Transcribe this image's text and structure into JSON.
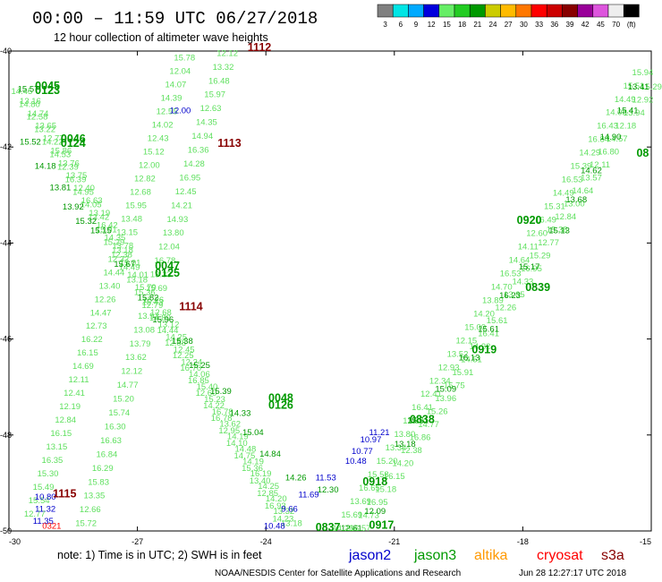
{
  "header": {
    "title": "00:00 – 11:59 UTC 06/27/2018",
    "subtitle": "12 hour collection of altimeter wave heights"
  },
  "color_scale": {
    "colors": [
      "#808080",
      "#00e5e5",
      "#00aaff",
      "#0000dd",
      "#66ee66",
      "#22cc22",
      "#009900",
      "#cccc00",
      "#ffbb00",
      "#ff7700",
      "#ff0000",
      "#cc0000",
      "#880000",
      "#990099",
      "#dd55dd",
      "#eeeeee",
      "#000000"
    ],
    "labels": [
      "3",
      "6",
      "9",
      "12",
      "15",
      "18",
      "21",
      "24",
      "27",
      "30",
      "33",
      "36",
      "39",
      "42",
      "45",
      "70",
      "(ft)"
    ]
  },
  "chart_data": {
    "type": "scatter",
    "title": "12 hour collection of altimeter wave heights",
    "xlim": [
      -30,
      -15
    ],
    "ylim": [
      -50,
      -40
    ],
    "x_ticks": [
      "-30",
      "-27",
      "-24",
      "-21",
      "-18",
      "-15"
    ],
    "y_ticks": [
      "-40",
      "-42",
      "-44",
      "-46",
      "-48",
      "-50"
    ],
    "series": [
      {
        "name": "jason3",
        "color": "#009900",
        "points": [
          {
            "x": -29.55,
            "y": -40.85,
            "v": "15.57"
          },
          {
            "x": -29.5,
            "y": -41.95,
            "v": "15.52"
          },
          {
            "x": -29.15,
            "y": -42.45,
            "v": "14.18"
          },
          {
            "x": -28.8,
            "y": -42.9,
            "v": "13.81"
          },
          {
            "x": -28.5,
            "y": -43.3,
            "v": "13.92"
          },
          {
            "x": -28.2,
            "y": -43.6,
            "v": "15.32"
          },
          {
            "x": -27.85,
            "y": -43.8,
            "v": "15.15"
          },
          {
            "x": -27.3,
            "y": -44.5,
            "v": "15.67"
          },
          {
            "x": -26.75,
            "y": -45.2,
            "v": "15.82"
          },
          {
            "x": -26.4,
            "y": -45.65,
            "v": "15.96"
          },
          {
            "x": -25.95,
            "y": -46.1,
            "v": "15.38"
          },
          {
            "x": -25.55,
            "y": -46.6,
            "v": "15.25"
          },
          {
            "x": -25.05,
            "y": -47.15,
            "v": "15.39"
          },
          {
            "x": -24.6,
            "y": -47.6,
            "v": "14.33"
          },
          {
            "x": -24.3,
            "y": -48.0,
            "v": "15.04"
          },
          {
            "x": -23.9,
            "y": -48.45,
            "v": "14.84"
          },
          {
            "x": -23.3,
            "y": -48.95,
            "v": "14.26"
          },
          {
            "x": -22.55,
            "y": -49.2,
            "v": "12.30"
          },
          {
            "x": -22.0,
            "y": -50.0,
            "v": "12.61"
          },
          {
            "x": -21.45,
            "y": -49.65,
            "v": "12.09"
          },
          {
            "x": -20.75,
            "y": -48.25,
            "v": "13.18"
          },
          {
            "x": -20.45,
            "y": -47.75,
            "v": "15.51"
          },
          {
            "x": -19.8,
            "y": -47.1,
            "v": "15.09"
          },
          {
            "x": -19.25,
            "y": -46.45,
            "v": "16.13"
          },
          {
            "x": -18.8,
            "y": -45.85,
            "v": "15.61"
          },
          {
            "x": -18.3,
            "y": -45.15,
            "v": "16.23"
          },
          {
            "x": -17.85,
            "y": -44.55,
            "v": "15.17"
          },
          {
            "x": -17.15,
            "y": -43.8,
            "v": "15.13"
          },
          {
            "x": -16.75,
            "y": -43.15,
            "v": "13.68"
          },
          {
            "x": -16.4,
            "y": -42.55,
            "v": "14.62"
          },
          {
            "x": -15.95,
            "y": -41.85,
            "v": "14.90"
          },
          {
            "x": -15.55,
            "y": -41.3,
            "v": "15.41"
          },
          {
            "x": -15.3,
            "y": -40.8,
            "v": "13.41"
          }
        ]
      },
      {
        "name": "jason2",
        "color": "#0000cc",
        "points": [
          {
            "x": -26.0,
            "y": -41.3,
            "v": "12.00"
          },
          {
            "x": -29.15,
            "y": -49.35,
            "v": "10.80"
          },
          {
            "x": -29.15,
            "y": -49.6,
            "v": "11.32"
          },
          {
            "x": -29.2,
            "y": -49.85,
            "v": "11.35"
          },
          {
            "x": -23.8,
            "y": -49.95,
            "v": "10.48"
          },
          {
            "x": -23.45,
            "y": -49.6,
            "v": "9.66"
          },
          {
            "x": -23.0,
            "y": -49.3,
            "v": "11.69"
          },
          {
            "x": -22.6,
            "y": -48.95,
            "v": "11.53"
          },
          {
            "x": -21.9,
            "y": -48.6,
            "v": "10.48"
          },
          {
            "x": -21.75,
            "y": -48.4,
            "v": "10.77"
          },
          {
            "x": -21.55,
            "y": -48.15,
            "v": "10.97"
          },
          {
            "x": -21.35,
            "y": -48.0,
            "v": "11.21"
          }
        ]
      },
      {
        "name": "cryosat",
        "color": "#ff0000",
        "points": [
          {
            "x": -29.0,
            "y": -49.95,
            "v": "0321"
          }
        ]
      }
    ],
    "time_labels": [
      {
        "x": -29.1,
        "y": -40.8,
        "v": "0045",
        "color": "#009900"
      },
      {
        "x": -29.1,
        "y": -40.9,
        "v": "0123",
        "color": "#009900"
      },
      {
        "x": -28.5,
        "y": -41.9,
        "v": "0046",
        "color": "#009900"
      },
      {
        "x": -28.5,
        "y": -42.0,
        "v": "0124",
        "color": "#009900"
      },
      {
        "x": -26.3,
        "y": -44.55,
        "v": "0047",
        "color": "#009900"
      },
      {
        "x": -26.3,
        "y": -44.7,
        "v": "0125",
        "color": "#009900"
      },
      {
        "x": -23.65,
        "y": -47.3,
        "v": "0048",
        "color": "#009900"
      },
      {
        "x": -23.65,
        "y": -47.45,
        "v": "0126",
        "color": "#009900"
      },
      {
        "x": -17.85,
        "y": -43.6,
        "v": "0920",
        "color": "#009900"
      },
      {
        "x": -17.65,
        "y": -45.0,
        "v": "0839",
        "color": "#009900"
      },
      {
        "x": -18.9,
        "y": -46.3,
        "v": "0919",
        "color": "#009900"
      },
      {
        "x": -20.35,
        "y": -47.75,
        "v": "0838",
        "color": "#009900"
      },
      {
        "x": -21.45,
        "y": -49.05,
        "v": "0918",
        "color": "#009900"
      },
      {
        "x": -22.55,
        "y": -50.0,
        "v": "0837",
        "color": "#009900"
      },
      {
        "x": -21.3,
        "y": -49.95,
        "v": "0917",
        "color": "#009900"
      },
      {
        "x": -15.2,
        "y": -42.2,
        "v": "08",
        "color": "#009900"
      },
      {
        "x": -24.15,
        "y": -40.0,
        "v": "1112",
        "color": "#880000"
      },
      {
        "x": -24.85,
        "y": -42.0,
        "v": "1113",
        "color": "#880000"
      },
      {
        "x": -25.75,
        "y": -45.4,
        "v": "1114",
        "color": "#880000"
      },
      {
        "x": -28.7,
        "y": -49.3,
        "v": "1115",
        "color": "#880000"
      }
    ]
  },
  "footer": {
    "note": "note:  1) Time is in UTC;  2) SWH is in feet",
    "satellites": [
      {
        "label": "jason2",
        "color": "#0000cc"
      },
      {
        "label": "jason3",
        "color": "#009900"
      },
      {
        "label": "altika",
        "color": "#ff9900"
      },
      {
        "label": "cryosat",
        "color": "#ff0000"
      },
      {
        "label": "s3a",
        "color": "#880000"
      }
    ],
    "credit": "NOAA/NESDIS Center for Satellite Applications and Research",
    "timestamp": "Jun 28 12:27:17 UTC 2018"
  }
}
